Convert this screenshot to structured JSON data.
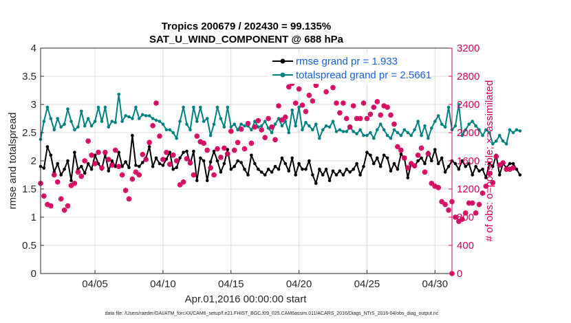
{
  "chart_data": {
    "type": "line",
    "title": "Tropics 200679 / 202430 = 99.135%",
    "subtitle": "SAT_U_WIND_COMPONENT @ 688 hPa",
    "xlabel": "Apr.01,2016 00:00:00 start",
    "ylabel": "rmse and totalspread",
    "y2label": "# of obs: o=possible; ×=assimilated",
    "footer": "data file: /Users/raeder/DAI/ATM_forcXX/CAM6_setup/f.e21.FHIST_BGC.f09_025.CAM6assim.011/ACARS_2016/Diags_NTrS_2016-04/obs_diag_output.nc",
    "xlim": [
      1,
      31.25
    ],
    "ylim": [
      0,
      4
    ],
    "y2lim": [
      0,
      3200
    ],
    "xticks": [
      5,
      10,
      15,
      20,
      25,
      30
    ],
    "xticklabels": [
      "04/05",
      "04/10",
      "04/15",
      "04/20",
      "04/25",
      "04/30"
    ],
    "yticks": [
      "0",
      "0.5",
      "1",
      "1.5",
      "2",
      "2.5",
      "3",
      "3.5",
      "4"
    ],
    "y2ticks": [
      "0",
      "400",
      "800",
      "1200",
      "1600",
      "2000",
      "2400",
      "2800",
      "3200"
    ],
    "legend_position": "top-right",
    "x_step_days": 0.25,
    "x_start_day": 1,
    "series": [
      {
        "name": "rmse grand pr = 1.933",
        "color": "#000000",
        "axis": "left",
        "marker": "circle",
        "values": [
          1.9,
          1.87,
          2.25,
          2.1,
          1.8,
          1.95,
          1.75,
          1.85,
          2.0,
          1.65,
          2.15,
          1.85,
          1.9,
          1.78,
          1.95,
          1.85,
          2.1,
          1.95,
          1.85,
          2.12,
          1.82,
          2.0,
          1.9,
          2.15,
          1.9,
          1.98,
          1.88,
          2.45,
          1.92,
          1.9,
          1.97,
          2.05,
          2.25,
          1.9,
          2.05,
          1.95,
          1.92,
          2.03,
          2.15,
          1.85,
          1.88,
          2.05,
          2.15,
          2.17,
          1.95,
          2.17,
          1.65,
          2.05,
          2.0,
          1.65,
          1.98,
          2.17,
          2.0,
          1.8,
          1.95,
          2.2,
          1.85,
          1.9,
          2.0,
          1.97,
          1.85,
          1.75,
          2.1,
          1.95,
          1.85,
          1.8,
          1.75,
          1.85,
          1.8,
          1.9,
          1.85,
          2.05,
          1.95,
          1.82,
          2.05,
          1.75,
          1.95,
          1.85,
          1.85,
          2.0,
          1.75,
          1.6,
          1.85,
          1.75,
          1.85,
          1.65,
          1.82,
          1.75,
          1.82,
          1.75,
          1.85,
          1.8,
          1.85,
          1.95,
          1.75,
          1.9,
          2.15,
          2.1,
          1.95,
          2.05,
          1.9,
          2.1,
          2.05,
          1.82,
          1.95,
          1.85,
          2.12,
          2.05,
          1.7,
          1.95,
          1.9,
          2.0,
          2.05,
          1.95,
          2.15,
          2.0,
          2.2,
          1.95,
          2.05,
          1.8,
          1.9,
          2.0,
          1.95,
          1.85,
          2.0,
          1.9,
          1.95,
          1.75,
          1.9,
          1.82,
          1.85,
          1.7,
          1.95,
          1.9,
          2.1,
          1.75,
          1.95,
          1.88,
          1.95,
          1.95,
          1.85,
          1.75
        ]
      },
      {
        "name": "totalspread grand pr = 2.5661",
        "color": "#008080",
        "axis": "left",
        "marker": "circle",
        "values": [
          2.38,
          2.7,
          2.95,
          2.75,
          2.55,
          2.75,
          2.6,
          2.65,
          2.92,
          2.7,
          2.55,
          2.6,
          2.88,
          2.62,
          2.75,
          2.62,
          2.7,
          2.95,
          2.7,
          2.95,
          2.6,
          2.7,
          2.68,
          3.18,
          2.7,
          2.8,
          2.78,
          2.75,
          2.95,
          2.75,
          2.82,
          2.8,
          2.8,
          2.75,
          2.72,
          2.7,
          2.65,
          2.55,
          2.55,
          2.5,
          2.4,
          2.7,
          2.95,
          2.65,
          2.55,
          2.95,
          2.7,
          2.95,
          2.7,
          2.75,
          2.45,
          2.65,
          2.95,
          2.75,
          2.6,
          2.95,
          2.6,
          2.65,
          2.55,
          2.65,
          2.62,
          2.62,
          2.55,
          2.7,
          2.6,
          2.62,
          2.7,
          2.58,
          2.5,
          2.65,
          2.75,
          2.62,
          2.7,
          2.5,
          2.9,
          2.62,
          2.95,
          2.55,
          2.68,
          2.62,
          2.55,
          2.65,
          2.4,
          2.55,
          2.62,
          2.6,
          2.7,
          2.52,
          2.55,
          2.52,
          2.52,
          2.6,
          2.52,
          2.48,
          2.55,
          2.45,
          2.45,
          2.5,
          2.4,
          2.55,
          2.65,
          2.55,
          2.45,
          2.4,
          2.55,
          2.5,
          2.45,
          2.55,
          2.5,
          2.45,
          2.55,
          2.7,
          2.45,
          2.62,
          2.4,
          2.58,
          2.7,
          2.8,
          2.65,
          2.6,
          2.95,
          2.55,
          2.62,
          3.0,
          2.45,
          2.55,
          2.65,
          2.7,
          2.62,
          2.55,
          2.45,
          2.55,
          2.5,
          2.3,
          2.35,
          2.45,
          2.35,
          2.3,
          2.55,
          2.5,
          2.55,
          2.53
        ]
      },
      {
        "name": "# of obs possible",
        "color": "#d6005f",
        "axis": "right",
        "marker": "star",
        "values": [
          1280,
          1100,
          980,
          960,
          1400,
          1300,
          1060,
          900,
          960,
          1250,
          1280,
          1440,
          1380,
          1600,
          1880,
          1680,
          1560,
          1720,
          1500,
          1720,
          1620,
          1540,
          1750,
          1520,
          1400,
          1180,
          1060,
          1340,
          1440,
          1400,
          1690,
          1620,
          1860,
          2100,
          2420,
          1950,
          1620,
          1720,
          1550,
          1680,
          1600,
          1260,
          1300,
          1630,
          1570,
          1400,
          1950,
          1870,
          1850,
          1750,
          1500,
          1400,
          1770,
          1650,
          1780,
          1700,
          2020,
          1750,
          1860,
          2050,
          1770,
          2130,
          1850,
          2080,
          2170,
          2040,
          1930,
          2200,
          2080,
          1900,
          2380,
          2180,
          2220,
          2650,
          2700,
          2420,
          2620,
          2390,
          2300,
          2530,
          2450,
          2670,
          2780,
          2920,
          2580,
          2770,
          2640,
          2420,
          2280,
          2420,
          2200,
          2080,
          2380,
          2200,
          2200,
          2420,
          2200,
          2260,
          2360,
          2440,
          2250,
          2380,
          2360,
          2250,
          2120,
          1800,
          1750,
          1640,
          1500,
          1560,
          1530,
          1680,
          1780,
          1440,
          1700,
          1280,
          1240,
          1220,
          1020,
          980,
          900,
          1020,
          800,
          740,
          770,
          860,
          1000,
          1000,
          860,
          980,
          1140,
          1240,
          1420,
          1290,
          1660,
          1540,
          1570,
          1480,
          1480,
          1500
        ]
      }
    ]
  }
}
